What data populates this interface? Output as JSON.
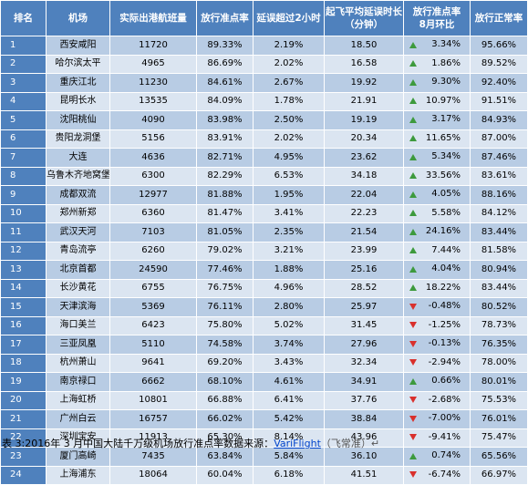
{
  "table": {
    "headers": {
      "rank": "排名",
      "airport": "机场",
      "flights": "实际出港航班量",
      "ontime_rate": "放行准点率",
      "delay_over_2h": "延误超过2小时",
      "avg_delay_l1": "起飞平均延误时长",
      "avg_delay_l2": "（分钟）",
      "change_l1": "放行准点率",
      "change_l2": "8月环比",
      "normal_rate": "放行正常率"
    },
    "rows": [
      {
        "rank": "1",
        "airport": "西安咸阳",
        "flights": "11720",
        "ontime": "89.33%",
        "delay2h": "2.19%",
        "avg": "18.50",
        "dir": "up",
        "change": "3.34%",
        "normal": "95.66%"
      },
      {
        "rank": "2",
        "airport": "哈尔滨太平",
        "flights": "4965",
        "ontime": "86.69%",
        "delay2h": "2.02%",
        "avg": "16.58",
        "dir": "up",
        "change": "1.86%",
        "normal": "89.52%"
      },
      {
        "rank": "3",
        "airport": "重庆江北",
        "flights": "11230",
        "ontime": "84.61%",
        "delay2h": "2.67%",
        "avg": "19.92",
        "dir": "up",
        "change": "9.30%",
        "normal": "92.40%"
      },
      {
        "rank": "4",
        "airport": "昆明长水",
        "flights": "13535",
        "ontime": "84.09%",
        "delay2h": "1.78%",
        "avg": "21.91",
        "dir": "up",
        "change": "10.97%",
        "normal": "91.51%"
      },
      {
        "rank": "5",
        "airport": "沈阳桃仙",
        "flights": "4090",
        "ontime": "83.98%",
        "delay2h": "2.50%",
        "avg": "19.19",
        "dir": "up",
        "change": "3.17%",
        "normal": "84.93%"
      },
      {
        "rank": "6",
        "airport": "贵阳龙洞堡",
        "flights": "5156",
        "ontime": "83.91%",
        "delay2h": "2.02%",
        "avg": "20.34",
        "dir": "up",
        "change": "11.65%",
        "normal": "87.00%"
      },
      {
        "rank": "7",
        "airport": "大连",
        "flights": "4636",
        "ontime": "82.71%",
        "delay2h": "4.95%",
        "avg": "23.62",
        "dir": "up",
        "change": "5.34%",
        "normal": "87.46%"
      },
      {
        "rank": "8",
        "airport": "乌鲁木齐地窝堡",
        "flights": "6300",
        "ontime": "82.29%",
        "delay2h": "6.53%",
        "avg": "34.18",
        "dir": "up",
        "change": "33.56%",
        "normal": "83.61%"
      },
      {
        "rank": "9",
        "airport": "成都双流",
        "flights": "12977",
        "ontime": "81.88%",
        "delay2h": "1.95%",
        "avg": "22.04",
        "dir": "up",
        "change": "4.05%",
        "normal": "88.16%"
      },
      {
        "rank": "10",
        "airport": "郑州新郑",
        "flights": "6360",
        "ontime": "81.47%",
        "delay2h": "3.41%",
        "avg": "22.23",
        "dir": "up",
        "change": "5.58%",
        "normal": "84.12%"
      },
      {
        "rank": "11",
        "airport": "武汉天河",
        "flights": "7103",
        "ontime": "81.05%",
        "delay2h": "2.35%",
        "avg": "21.54",
        "dir": "up",
        "change": "24.16%",
        "normal": "83.44%"
      },
      {
        "rank": "12",
        "airport": "青岛流亭",
        "flights": "6260",
        "ontime": "79.02%",
        "delay2h": "3.21%",
        "avg": "23.99",
        "dir": "up",
        "change": "7.44%",
        "normal": "81.58%"
      },
      {
        "rank": "13",
        "airport": "北京首都",
        "flights": "24590",
        "ontime": "77.46%",
        "delay2h": "1.88%",
        "avg": "25.16",
        "dir": "up",
        "change": "4.04%",
        "normal": "80.94%"
      },
      {
        "rank": "14",
        "airport": "长沙黄花",
        "flights": "6755",
        "ontime": "76.75%",
        "delay2h": "4.96%",
        "avg": "28.52",
        "dir": "up",
        "change": "18.22%",
        "normal": "83.44%"
      },
      {
        "rank": "15",
        "airport": "天津滨海",
        "flights": "5369",
        "ontime": "76.11%",
        "delay2h": "2.80%",
        "avg": "25.97",
        "dir": "down",
        "change": "-0.48%",
        "normal": "80.52%"
      },
      {
        "rank": "16",
        "airport": "海口美兰",
        "flights": "6423",
        "ontime": "75.80%",
        "delay2h": "5.02%",
        "avg": "31.45",
        "dir": "down",
        "change": "-1.25%",
        "normal": "78.73%"
      },
      {
        "rank": "17",
        "airport": "三亚凤凰",
        "flights": "5110",
        "ontime": "74.58%",
        "delay2h": "3.74%",
        "avg": "27.96",
        "dir": "down",
        "change": "-0.13%",
        "normal": "76.35%"
      },
      {
        "rank": "18",
        "airport": "杭州萧山",
        "flights": "9641",
        "ontime": "69.20%",
        "delay2h": "3.43%",
        "avg": "32.34",
        "dir": "down",
        "change": "-2.94%",
        "normal": "78.00%"
      },
      {
        "rank": "19",
        "airport": "南京禄口",
        "flights": "6662",
        "ontime": "68.10%",
        "delay2h": "4.61%",
        "avg": "34.91",
        "dir": "up",
        "change": "0.66%",
        "normal": "80.01%"
      },
      {
        "rank": "20",
        "airport": "上海虹桥",
        "flights": "10801",
        "ontime": "66.88%",
        "delay2h": "6.41%",
        "avg": "37.76",
        "dir": "down",
        "change": "-2.68%",
        "normal": "75.53%"
      },
      {
        "rank": "21",
        "airport": "广州白云",
        "flights": "16757",
        "ontime": "66.02%",
        "delay2h": "5.42%",
        "avg": "38.84",
        "dir": "down",
        "change": "-7.00%",
        "normal": "76.01%"
      },
      {
        "rank": "22",
        "airport": "深圳宝安",
        "flights": "11913",
        "ontime": "65.30%",
        "delay2h": "8.14%",
        "avg": "43.96",
        "dir": "down",
        "change": "-9.41%",
        "normal": "75.47%"
      },
      {
        "rank": "23",
        "airport": "厦门高崎",
        "flights": "7435",
        "ontime": "63.84%",
        "delay2h": "5.84%",
        "avg": "36.10",
        "dir": "up",
        "change": "0.74%",
        "normal": "65.56%"
      },
      {
        "rank": "24",
        "airport": "上海浦东",
        "flights": "18064",
        "ontime": "60.04%",
        "delay2h": "6.18%",
        "avg": "41.51",
        "dir": "down",
        "change": "-6.74%",
        "normal": "66.97%"
      }
    ]
  },
  "caption": {
    "text": "表 3:2016年 3 月中国大陆千万级机场放行准点率数据来源：",
    "source": "VariFlight",
    "tail": "（飞常准）↵"
  },
  "colors": {
    "header_bg": "#4f81bd",
    "row_odd": "#b8cce4",
    "row_even": "#dbe5f1",
    "up": "#3d9a3d",
    "down": "#d9302c"
  }
}
